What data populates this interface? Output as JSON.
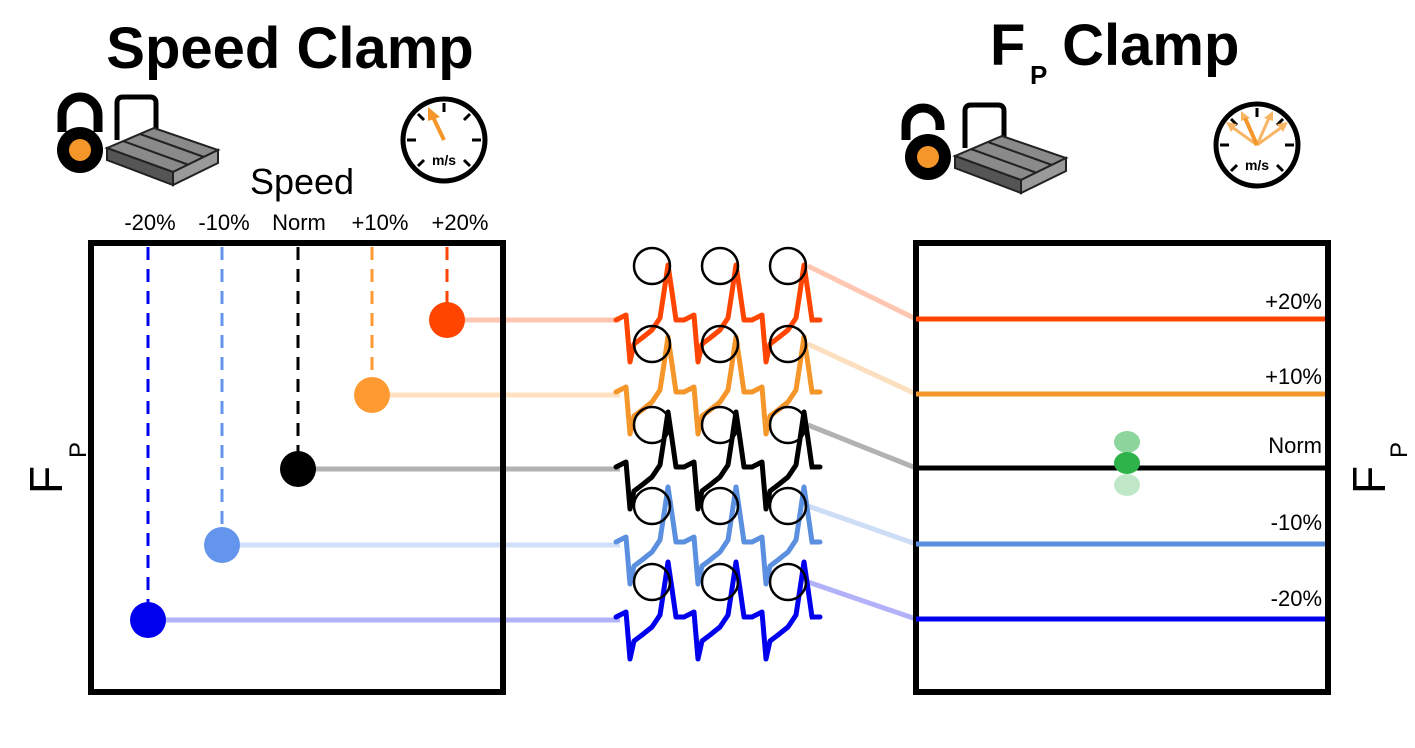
{
  "speed_clamp": {
    "title": "Speed Clamp",
    "speed_label": "Speed",
    "gauge_unit": "m/s",
    "axis_label": "F",
    "axis_sub": "P",
    "conditions": [
      {
        "label": "-20%",
        "color": "#0000ee"
      },
      {
        "label": "-10%",
        "color": "#6495ed"
      },
      {
        "label": "Norm",
        "color": "#000000"
      },
      {
        "label": "+10%",
        "color": "#ff9a33"
      },
      {
        "label": "+20%",
        "color": "#ff4500"
      }
    ]
  },
  "fp_clamp": {
    "title_main": "F",
    "title_sub": "P",
    "title_rest": " Clamp",
    "gauge_unit": "m/s",
    "axis_label": "F",
    "axis_sub": "P",
    "levels": [
      {
        "label": "+20%",
        "color": "#ff4500"
      },
      {
        "label": "+10%",
        "color": "#f5962a"
      },
      {
        "label": "Norm",
        "color": "#000000"
      },
      {
        "label": "-10%",
        "color": "#5b8fe0"
      },
      {
        "label": "-20%",
        "color": "#0000ee"
      }
    ]
  },
  "colors": {
    "lock_accent": "#f5962a",
    "treadmill_belt": "#8a8a8a",
    "green_marker": "#2db34a"
  },
  "icons": [
    "locked-padlock-icon",
    "treadmill-icon",
    "speedometer-icon",
    "unlocked-padlock-icon"
  ]
}
